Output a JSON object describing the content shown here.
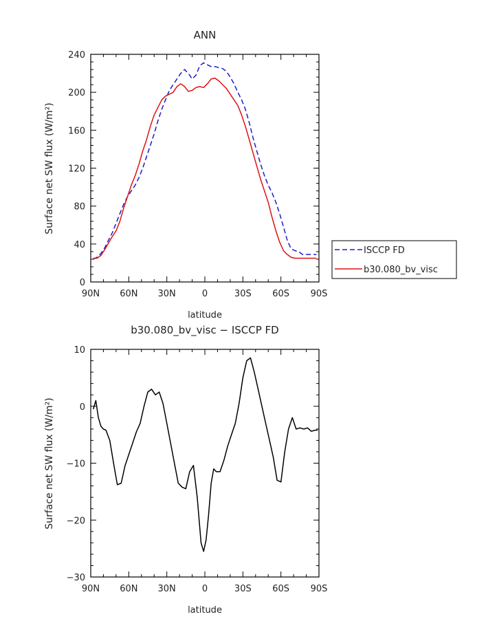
{
  "chart_data": [
    {
      "type": "line",
      "title": "ANN",
      "xlabel": "latitude",
      "ylabel": "Surface net SW flux (W/m²)",
      "xlim": [
        -90,
        90
      ],
      "ylim": [
        0,
        240
      ],
      "x_ticks": [
        -90,
        -60,
        -30,
        0,
        30,
        60,
        90
      ],
      "x_tick_labels": [
        "90N",
        "60N",
        "30N",
        "0",
        "30S",
        "60S",
        "90S"
      ],
      "y_ticks": [
        0,
        40,
        80,
        120,
        160,
        200,
        240
      ],
      "y_tick_labels": [
        "0",
        "40",
        "80",
        "120",
        "160",
        "200",
        "240"
      ],
      "legend_position": "right",
      "series": [
        {
          "name": "ISCCP FD",
          "color": "#1a1acc",
          "dash": "dashed",
          "x": [
            -88,
            -85,
            -82,
            -79,
            -76,
            -73,
            -70,
            -67,
            -64,
            -61,
            -58,
            -55,
            -52,
            -49,
            -46,
            -43,
            -40,
            -37,
            -34,
            -31,
            -28,
            -25,
            -22,
            -19,
            -16,
            -13,
            -10,
            -7,
            -4,
            -1,
            2,
            5,
            8,
            11,
            14,
            17,
            20,
            23,
            26,
            29,
            32,
            35,
            38,
            41,
            44,
            47,
            50,
            53,
            56,
            59,
            62,
            65,
            68,
            71,
            74,
            77,
            80,
            83,
            86,
            88
          ],
          "values": [
            24,
            26,
            30,
            36,
            44,
            52,
            62,
            72,
            82,
            90,
            96,
            102,
            110,
            120,
            132,
            144,
            156,
            170,
            182,
            192,
            202,
            208,
            214,
            220,
            224,
            220,
            214,
            218,
            228,
            231,
            229,
            227,
            227,
            226,
            225,
            222,
            216,
            209,
            200,
            192,
            182,
            168,
            152,
            138,
            124,
            112,
            102,
            94,
            84,
            72,
            58,
            44,
            35,
            33,
            32,
            29,
            29,
            29,
            29,
            29
          ]
        },
        {
          "name": "b30.080_bv_visc",
          "color": "#e01010",
          "dash": "solid",
          "x": [
            -88,
            -85,
            -82,
            -79,
            -76,
            -73,
            -70,
            -67,
            -64,
            -61,
            -58,
            -55,
            -52,
            -49,
            -46,
            -43,
            -40,
            -37,
            -34,
            -31,
            -28,
            -25,
            -22,
            -19,
            -16,
            -13,
            -10,
            -7,
            -4,
            -1,
            2,
            5,
            8,
            11,
            14,
            17,
            20,
            23,
            26,
            29,
            32,
            35,
            38,
            41,
            44,
            47,
            50,
            53,
            56,
            59,
            62,
            65,
            68,
            71,
            74,
            77,
            80,
            83,
            86,
            88
          ],
          "values": [
            25,
            25,
            28,
            34,
            41,
            48,
            54,
            64,
            78,
            90,
            102,
            112,
            124,
            138,
            150,
            164,
            176,
            184,
            192,
            196,
            198,
            200,
            206,
            209,
            206,
            201,
            202,
            205,
            206,
            205,
            209,
            214,
            215,
            212,
            208,
            204,
            198,
            192,
            186,
            176,
            164,
            150,
            136,
            122,
            108,
            96,
            84,
            68,
            54,
            42,
            33,
            29,
            26,
            25,
            25,
            25,
            25,
            25,
            25,
            25
          ]
        }
      ]
    },
    {
      "type": "line",
      "title": "b30.080_bv_visc − ISCCP FD",
      "xlabel": "latitude",
      "ylabel": "Surface net SW flux (W/m²)",
      "xlim": [
        -90,
        90
      ],
      "ylim": [
        -30,
        10
      ],
      "x_ticks": [
        -90,
        -60,
        -30,
        0,
        30,
        60,
        90
      ],
      "x_tick_labels": [
        "90N",
        "60N",
        "30N",
        "0",
        "30S",
        "60S",
        "90S"
      ],
      "y_ticks": [
        -30,
        -20,
        -10,
        0,
        10
      ],
      "y_tick_labels": [
        "−30",
        "−20",
        "−10",
        "0",
        "10"
      ],
      "series": [
        {
          "color": "#000000",
          "dash": "solid",
          "x": [
            -88,
            -86,
            -84,
            -82,
            -80,
            -78,
            -75,
            -72,
            -69,
            -66,
            -63,
            -60,
            -57,
            -54,
            -51,
            -48,
            -45,
            -42,
            -39,
            -36,
            -33,
            -30,
            -27,
            -24,
            -21,
            -18,
            -15,
            -12,
            -9,
            -6,
            -3,
            -1,
            1,
            3,
            5,
            7,
            9,
            12,
            15,
            18,
            21,
            24,
            27,
            30,
            33,
            36,
            39,
            42,
            45,
            48,
            51,
            54,
            57,
            60,
            63,
            66,
            69,
            72,
            75,
            78,
            81,
            84,
            87,
            89
          ],
          "values": [
            -0.5,
            1,
            -2,
            -3.5,
            -4,
            -4.2,
            -6,
            -10,
            -13.8,
            -13.5,
            -10.5,
            -8.5,
            -6.5,
            -4.5,
            -3,
            0,
            2.5,
            3,
            2,
            2.5,
            0.5,
            -3,
            -6.5,
            -10,
            -13.5,
            -14.2,
            -14.5,
            -11.5,
            -10.4,
            -16,
            -24,
            -25.5,
            -23.5,
            -19,
            -13.5,
            -11,
            -11.5,
            -11.5,
            -9.5,
            -7,
            -5,
            -3,
            0.5,
            5,
            8,
            8.5,
            6,
            3,
            0,
            -3,
            -6,
            -9,
            -13,
            -13.3,
            -8,
            -4,
            -2,
            -4,
            -3.8,
            -4,
            -3.8,
            -4.4,
            -4.2,
            -4.2
          ]
        }
      ]
    }
  ]
}
